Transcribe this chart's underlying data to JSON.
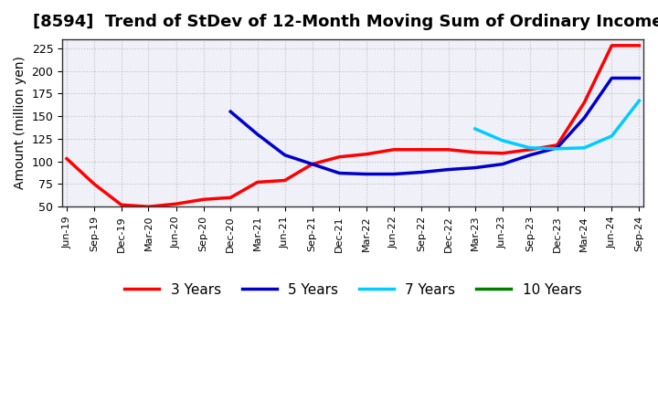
{
  "title": "[8594]  Trend of StDev of 12-Month Moving Sum of Ordinary Incomes",
  "ylabel": "Amount (million yen)",
  "background_color": "#ffffff",
  "grid_color": "#aaaaaa",
  "ylim": [
    50,
    235
  ],
  "yticks": [
    50,
    75,
    100,
    125,
    150,
    175,
    200,
    225
  ],
  "title_fontsize": 13,
  "axis_fontsize": 10,
  "legend_fontsize": 11,
  "series": {
    "3years": {
      "color": "#ff0000",
      "label": "3 Years",
      "dates": [
        "Jun-19",
        "Sep-19",
        "Dec-19",
        "Mar-20",
        "Jun-20",
        "Sep-20",
        "Dec-20",
        "Mar-21",
        "Jun-21",
        "Sep-21",
        "Dec-21",
        "Mar-22",
        "Jun-22",
        "Sep-22",
        "Dec-22",
        "Mar-23",
        "Jun-23",
        "Sep-23",
        "Dec-23",
        "Mar-24",
        "Jun-24",
        "Sep-24"
      ],
      "values": [
        103,
        75,
        52,
        50,
        53,
        58,
        60,
        77,
        79,
        97,
        105,
        108,
        113,
        113,
        113,
        110,
        109,
        113,
        118,
        165,
        228,
        228
      ]
    },
    "5years": {
      "color": "#0000cc",
      "label": "5 Years",
      "dates": [
        "Dec-20",
        "Mar-21",
        "Jun-21",
        "Sep-21",
        "Dec-21",
        "Mar-22",
        "Jun-22",
        "Sep-22",
        "Dec-22",
        "Mar-23",
        "Jun-23",
        "Sep-23",
        "Dec-23",
        "Mar-24",
        "Jun-24",
        "Sep-24"
      ],
      "values": [
        155,
        130,
        107,
        97,
        87,
        86,
        86,
        88,
        91,
        93,
        97,
        107,
        115,
        148,
        192,
        192
      ]
    },
    "7years": {
      "color": "#00ccff",
      "label": "7 Years",
      "dates": [
        "Mar-23",
        "Jun-23",
        "Sep-23",
        "Dec-23",
        "Mar-24",
        "Jun-24",
        "Sep-24"
      ],
      "values": [
        136,
        123,
        115,
        114,
        115,
        128,
        167
      ]
    },
    "10years": {
      "color": "#008000",
      "label": "10 Years",
      "dates": [],
      "values": []
    }
  },
  "xtick_labels": [
    "Jun-19",
    "Sep-19",
    "Dec-19",
    "Mar-20",
    "Jun-20",
    "Sep-20",
    "Dec-20",
    "Mar-21",
    "Jun-21",
    "Sep-21",
    "Dec-21",
    "Mar-22",
    "Jun-22",
    "Sep-22",
    "Dec-22",
    "Mar-23",
    "Jun-23",
    "Sep-23",
    "Dec-23",
    "Mar-24",
    "Jun-24",
    "Sep-24"
  ]
}
